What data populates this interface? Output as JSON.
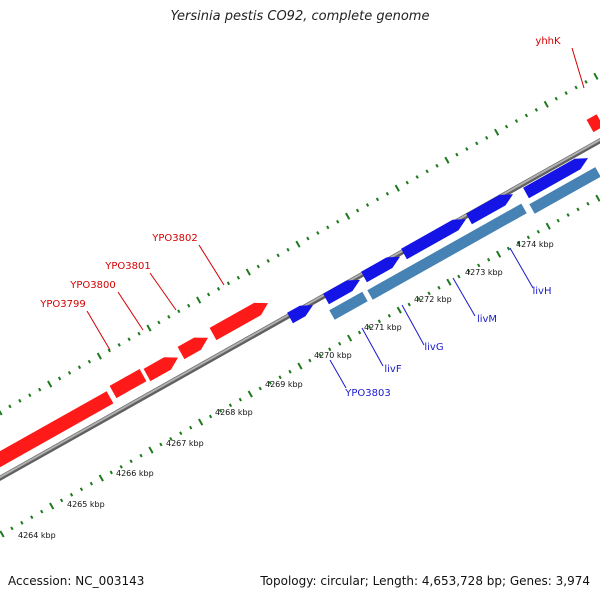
{
  "title": "Yersinia pestis CO92, complete genome",
  "footer": {
    "accession": "Accession: NC_003143",
    "summary": "Topology: circular; Length: 4,653,728 bp; Genes: 3,974"
  },
  "colors": {
    "forward_gene": "#ff1a1a",
    "reverse_gene": "#1414e6",
    "operon": "#4682b4",
    "backbone": "#808080",
    "ticks": "#1e7a1e",
    "forward_label": "#d40000",
    "reverse_label": "#1a1acc"
  },
  "scale_labels": [
    "4264 kbp",
    "4265 kbp",
    "4266 kbp",
    "4267 kbp",
    "4268 kbp",
    "4269 kbp",
    "4270 kbp",
    "4271 kbp",
    "4272 kbp",
    "4273 kbp",
    "4274 kbp"
  ],
  "forward_gene_labels": [
    "YPO3799",
    "YPO3800",
    "YPO3801",
    "YPO3802",
    "yhhK"
  ],
  "reverse_gene_labels": [
    "YPO3803",
    "livF",
    "livG",
    "livM",
    "livH"
  ]
}
